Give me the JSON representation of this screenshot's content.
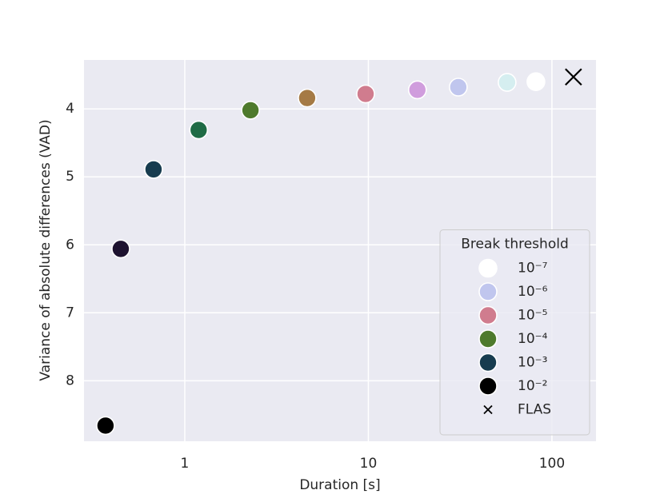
{
  "chart_data": {
    "type": "scatter",
    "xlabel": "Duration [s]",
    "ylabel": "Variance of absolute differences (VAD)",
    "xscale": "log",
    "xlim": [
      0.2825,
      173.8
    ],
    "xticks": [
      1,
      10,
      100
    ],
    "ylim": [
      3.28,
      8.89
    ],
    "y_inverted": true,
    "yticks": [
      4,
      5,
      6,
      7,
      8
    ],
    "grid": true,
    "series": [
      {
        "x": [
          0.37,
          0.448,
          0.676,
          1.19,
          2.28,
          4.64,
          9.66,
          18.5,
          30.9,
          57,
          81.8
        ],
        "values": [
          8.66,
          6.06,
          4.89,
          4.31,
          4.02,
          3.84,
          3.78,
          3.72,
          3.68,
          3.61,
          3.6
        ],
        "colors": [
          "#000000",
          "#1e1330",
          "#173c4f",
          "#1f6b45",
          "#4e7a2c",
          "#a57a45",
          "#d07c8e",
          "#d09ddd",
          "#c0c6ee",
          "#d5eef0",
          "#ffffff"
        ],
        "marker": "circle"
      },
      {
        "name": "FLAS",
        "x": [
          131
        ],
        "values": [
          3.53
        ],
        "color": "#000000",
        "marker": "x"
      }
    ],
    "legend": {
      "title": "Break threshold",
      "position": "lower right",
      "entries": [
        {
          "label": "10⁻⁷",
          "color": "#ffffff"
        },
        {
          "label": "10⁻⁶",
          "color": "#c0c6ee"
        },
        {
          "label": "10⁻⁵",
          "color": "#d07c8e"
        },
        {
          "label": "10⁻⁴",
          "color": "#4e7a2c"
        },
        {
          "label": "10⁻³",
          "color": "#173c4f"
        },
        {
          "label": "10⁻²",
          "color": "#000000"
        }
      ]
    }
  }
}
